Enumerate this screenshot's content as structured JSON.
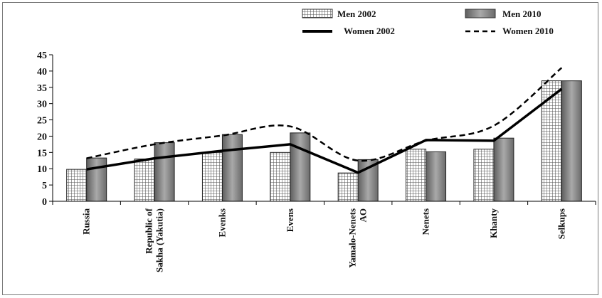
{
  "chart_data": {
    "type": "bar",
    "categories": [
      [
        "Russia"
      ],
      [
        "Republic of",
        "Sakha (Yakutia)"
      ],
      [
        "Evenks"
      ],
      [
        "Evens"
      ],
      [
        "Yamalo-Nenets",
        "AO"
      ],
      [
        "Nenets"
      ],
      [
        "Khanty"
      ],
      [
        "Selkups"
      ]
    ],
    "series": [
      {
        "name": "Men 2002",
        "kind": "bar",
        "pattern": "grid",
        "values": [
          9.8,
          13,
          15,
          15,
          8.7,
          16,
          16,
          37
        ]
      },
      {
        "name": "Men 2010",
        "kind": "bar",
        "pattern": "gray",
        "values": [
          13.3,
          18,
          20.5,
          21,
          12.8,
          15.2,
          19.4,
          37
        ]
      },
      {
        "name": "Women 2002",
        "kind": "line",
        "style": "solid",
        "values": [
          9.8,
          13.2,
          15.5,
          17.5,
          8.8,
          18.8,
          18.6,
          34.5
        ]
      },
      {
        "name": "Women 2010",
        "kind": "line",
        "style": "dashed",
        "values": [
          13.2,
          17.5,
          20.2,
          23.0,
          12.5,
          18.6,
          23.2,
          41.0
        ]
      }
    ],
    "ylim": [
      0,
      45
    ],
    "yticks": [
      0,
      5,
      10,
      15,
      20,
      25,
      30,
      35,
      40,
      45
    ],
    "legend_position": "top",
    "grid": false
  }
}
